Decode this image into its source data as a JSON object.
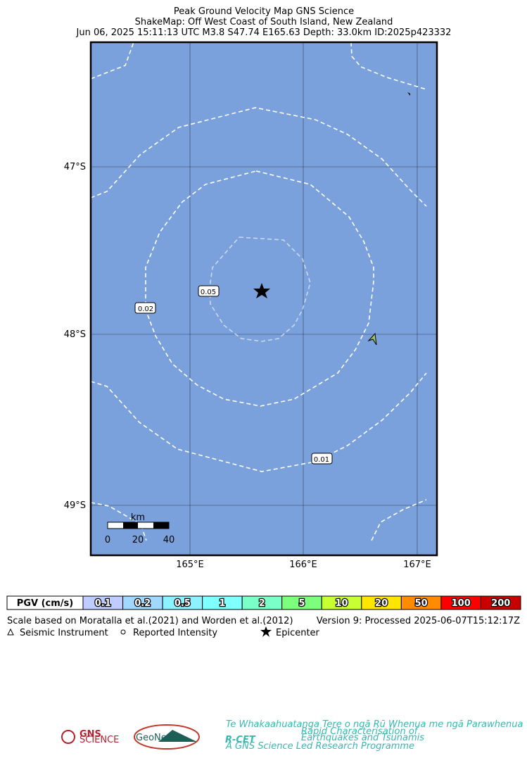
{
  "header": {
    "lines": [
      "Peak Ground Velocity Map GNS Science",
      "ShakeMap: Off West Coast of South Island, New Zealand",
      "Jun 06, 2025 15:11:13 UTC M3.8 S47.74 E165.63 Depth: 33.0km ID:2025p423332"
    ]
  },
  "map": {
    "lat_labels": [
      "47°S",
      "48°S",
      "49°S"
    ],
    "lon_labels": [
      "165°E",
      "166°E",
      "167°E"
    ],
    "contour_labels": [
      "0.05",
      "0.02",
      "0.01"
    ],
    "scale_bar": {
      "unit": "km",
      "labels": [
        "0",
        "20",
        "40"
      ]
    }
  },
  "colorbar": {
    "title": "PGV (cm/s)",
    "cells": [
      {
        "label": "0.1",
        "color": "#bfccff"
      },
      {
        "label": "0.2",
        "color": "#a0d8ff"
      },
      {
        "label": "0.5",
        "color": "#8cf2ff"
      },
      {
        "label": "1",
        "color": "#80ffff"
      },
      {
        "label": "2",
        "color": "#7affc8"
      },
      {
        "label": "5",
        "color": "#7dff7d"
      },
      {
        "label": "10",
        "color": "#c8ff32"
      },
      {
        "label": "20",
        "color": "#ffe600"
      },
      {
        "label": "50",
        "color": "#ff8c00"
      },
      {
        "label": "100",
        "color": "#ff0000"
      },
      {
        "label": "200",
        "color": "#c80000"
      }
    ]
  },
  "notes": {
    "reference": "Scale based on Moratalla et al.(2021) and Worden et al.(2012)",
    "version": "Version 9: Processed 2025-06-07T15:12:17Z"
  },
  "legend": [
    "Seismic Instrument",
    "Reported Intensity",
    "Epicenter"
  ],
  "logos": {
    "gns": "GNS",
    "gns_sub": "SCIENCE",
    "geonet": "GeoNet",
    "rcet_tagline": "Te Whakaahuatanga Tere o ngā Rū Whenua me ngā Parawhenua",
    "rcet": "R-CET",
    "rcet_desc1": "Rapid Characterisation of",
    "rcet_desc2": "Earthquakes and Tsunamis",
    "rcet_foot": "A GNS Science Led Research Programme"
  }
}
